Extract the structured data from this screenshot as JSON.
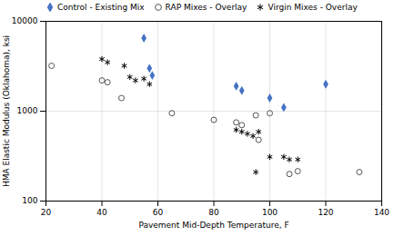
{
  "chart_data": {
    "type": "scatter",
    "xlabel": "Pavement Mid-Depth Temperature, F",
    "ylabel": "HMA Elastic Modulus (Oklahoma), ksi",
    "xlim": [
      20,
      140
    ],
    "xticks": [
      20,
      40,
      60,
      80,
      100,
      120,
      140
    ],
    "ylim": [
      100,
      10000
    ],
    "yticks": [
      100,
      1000,
      10000
    ],
    "log": "y",
    "grid": true,
    "legend": "top",
    "series": [
      {
        "name": "Control - Existing Mix",
        "color": "#4472c4",
        "marker": "diamond",
        "x": [
          55,
          57,
          58,
          88,
          90,
          100,
          105,
          120
        ],
        "values": [
          6500,
          3000,
          2500,
          1900,
          1700,
          1400,
          1100,
          2000
        ]
      },
      {
        "name": "RAP Mixes - Overlay",
        "color": "#555555",
        "marker": "circle",
        "x": [
          22,
          40,
          42,
          47,
          65,
          80,
          88,
          90,
          95,
          96,
          100,
          107,
          110,
          132
        ],
        "values": [
          3200,
          2200,
          2100,
          1400,
          950,
          800,
          750,
          700,
          900,
          480,
          950,
          200,
          215,
          210
        ]
      },
      {
        "name": "Virgin Mixes - Overlay",
        "color": "#000000",
        "marker": "asterisk",
        "x": [
          40,
          42,
          48,
          50,
          52,
          55,
          57,
          88,
          90,
          92,
          94,
          95,
          96,
          100,
          105,
          107,
          110
        ],
        "values": [
          3800,
          3500,
          3200,
          2400,
          2200,
          2300,
          2000,
          620,
          590,
          560,
          530,
          210,
          590,
          310,
          310,
          290,
          290
        ]
      }
    ]
  }
}
